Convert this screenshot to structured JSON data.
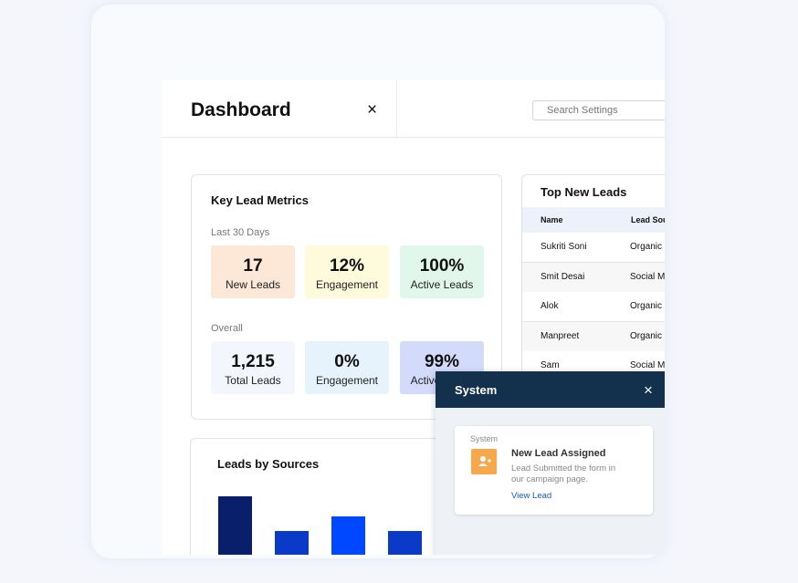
{
  "header": {
    "title": "Dashboard",
    "close": "×",
    "search_placeholder": "Search Settings"
  },
  "key_metrics": {
    "title": "Key Lead Metrics",
    "groups": [
      {
        "label": "Last 30 Days",
        "tiles": [
          {
            "value": "17",
            "label": "New Leads"
          },
          {
            "value": "12%",
            "label": "Engagement"
          },
          {
            "value": "100%",
            "label": "Active Leads"
          }
        ]
      },
      {
        "label": "Overall",
        "tiles": [
          {
            "value": "1,215",
            "label": "Total Leads"
          },
          {
            "value": "0%",
            "label": "Engagement"
          },
          {
            "value": "99%",
            "label": "Active Leads"
          }
        ]
      }
    ]
  },
  "top_leads": {
    "title": "Top New Leads",
    "columns": [
      "Name",
      "Lead Source"
    ],
    "rows": [
      [
        "Sukriti Soni",
        "Organic"
      ],
      [
        "Smit Desai",
        "Social Media"
      ],
      [
        "Alok",
        "Organic"
      ],
      [
        "Manpreet",
        "Organic"
      ],
      [
        "Sam",
        "Social Media"
      ]
    ]
  },
  "leads_by_sources": {
    "title": "Leads by Sources",
    "values": [
      65,
      27,
      43,
      27
    ],
    "colors": [
      "#0a1f6b",
      "#0a3ac7",
      "#0048ff",
      "#0a3ac7"
    ]
  },
  "system_panel": {
    "title": "System",
    "close": "×",
    "notification": {
      "category": "System",
      "title": "New Lead Assigned",
      "message": "Lead Submitted the form in our campaign page.",
      "action": "View Lead"
    }
  }
}
